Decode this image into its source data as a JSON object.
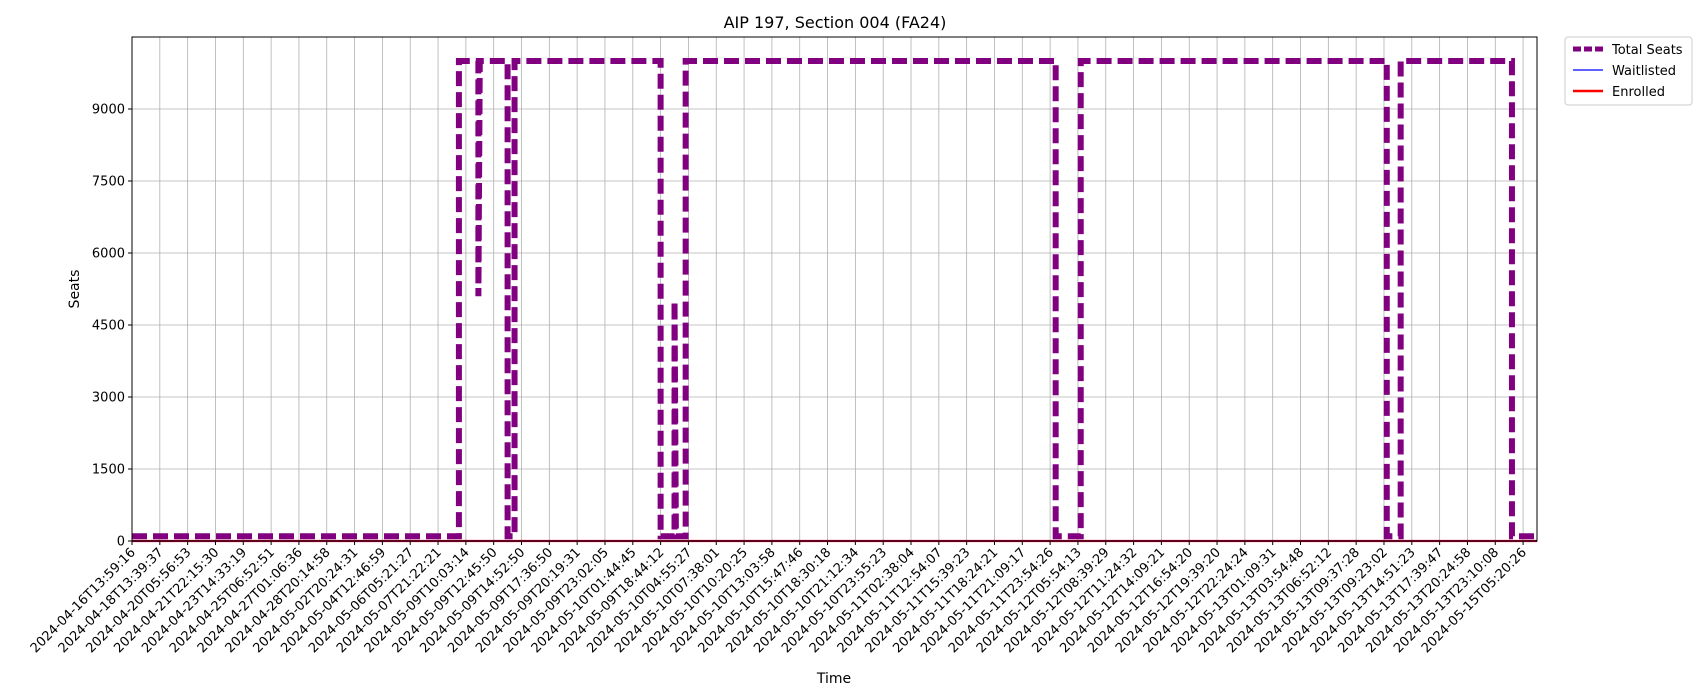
{
  "chart_data": {
    "type": "line",
    "title": "AIP 197, Section 004 (FA24)",
    "xlabel": "Time",
    "ylabel": "Seats",
    "ylim": [
      0,
      10500
    ],
    "yticks": [
      0,
      1500,
      3000,
      4500,
      6000,
      7500,
      9000
    ],
    "grid": true,
    "legend_position": "outside-top-right",
    "x_tick_labels": [
      "2024-04-16T13:59:16",
      "2024-04-18T13:39:37",
      "2024-04-20T05:56:53",
      "2024-04-21T22:15:30",
      "2024-04-23T14:33:19",
      "2024-04-25T06:52:51",
      "2024-04-27T01:06:36",
      "2024-04-28T20:14:58",
      "2024-05-02T20:24:31",
      "2024-05-04T12:46:59",
      "2024-05-06T05:21:27",
      "2024-05-07T21:22:21",
      "2024-05-09T10:03:14",
      "2024-05-09T12:45:50",
      "2024-05-09T14:52:50",
      "2024-05-09T17:36:50",
      "2024-05-09T20:19:31",
      "2024-05-09T23:02:05",
      "2024-05-10T01:44:45",
      "2024-05-09T18:44:12",
      "2024-05-10T04:55:27",
      "2024-05-10T07:38:01",
      "2024-05-10T10:20:25",
      "2024-05-10T13:03:58",
      "2024-05-10T15:47:46",
      "2024-05-10T18:30:18",
      "2024-05-10T21:12:34",
      "2024-05-10T23:55:23",
      "2024-05-11T02:38:04",
      "2024-05-11T12:54:07",
      "2024-05-11T15:39:23",
      "2024-05-11T18:24:21",
      "2024-05-11T21:09:17",
      "2024-05-11T23:54:26",
      "2024-05-12T05:54:13",
      "2024-05-12T08:39:29",
      "2024-05-12T11:24:32",
      "2024-05-12T14:09:21",
      "2024-05-12T16:54:20",
      "2024-05-12T19:39:20",
      "2024-05-12T22:24:24",
      "2024-05-13T01:09:31",
      "2024-05-13T03:54:48",
      "2024-05-13T06:52:12",
      "2024-05-13T09:37:28",
      "2024-05-13T09:23:02",
      "2024-05-13T14:51:23",
      "2024-05-13T17:39:47",
      "2024-05-13T20:24:58",
      "2024-05-13T23:10:08",
      "2024-05-15T05:20:26"
    ],
    "x_range": [
      0,
      50.5
    ],
    "series": [
      {
        "name": "Total Seats",
        "color": "#800080",
        "style": "dashed",
        "points": [
          [
            0,
            100
          ],
          [
            11.75,
            100
          ],
          [
            11.75,
            10000
          ],
          [
            12.45,
            10000
          ],
          [
            12.45,
            5100
          ],
          [
            12.5,
            10000
          ],
          [
            13.5,
            10000
          ],
          [
            13.5,
            100
          ],
          [
            13.75,
            100
          ],
          [
            13.75,
            10000
          ],
          [
            19,
            10000
          ],
          [
            19,
            100
          ],
          [
            19.5,
            100
          ],
          [
            19.5,
            5000
          ],
          [
            19.55,
            100
          ],
          [
            19.9,
            100
          ],
          [
            19.9,
            10000
          ],
          [
            33.2,
            10000
          ],
          [
            33.2,
            100
          ],
          [
            34.1,
            100
          ],
          [
            34.1,
            10000
          ],
          [
            45.1,
            10000
          ],
          [
            45.1,
            100
          ],
          [
            45.6,
            100
          ],
          [
            45.6,
            10000
          ],
          [
            49.6,
            10000
          ],
          [
            49.6,
            100
          ],
          [
            50.5,
            100
          ]
        ]
      },
      {
        "name": "Waitlisted",
        "color": "#0000ff",
        "style": "solid",
        "points": [
          [
            0,
            0
          ],
          [
            50.5,
            0
          ]
        ]
      },
      {
        "name": "Enrolled",
        "color": "#ff0000",
        "style": "solid",
        "points": [
          [
            0,
            0
          ],
          [
            50.5,
            0
          ]
        ]
      }
    ]
  }
}
